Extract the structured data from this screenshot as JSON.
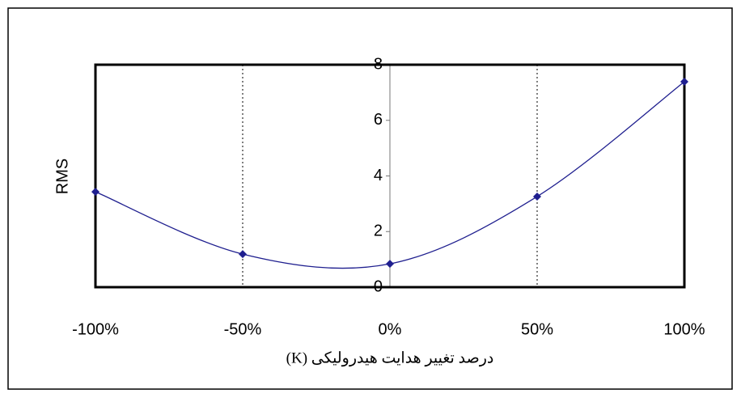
{
  "chart_data": {
    "type": "line",
    "y_label": "RMS",
    "x_label": "درصد تغییر هدایت هیدرولیکی (K)",
    "x": [
      -100,
      -50,
      0,
      50,
      100
    ],
    "series": [
      {
        "name": "RMS",
        "color": "#1f1f8f",
        "values": [
          3.43,
          1.19,
          0.84,
          3.26,
          7.39
        ]
      }
    ],
    "xlim": [
      -100,
      100
    ],
    "xticks": [
      {
        "value": -100,
        "label": "-100%"
      },
      {
        "value": -50,
        "label": "-50%"
      },
      {
        "value": 0,
        "label": "0%"
      },
      {
        "value": 50,
        "label": "50%"
      },
      {
        "value": 100,
        "label": "100%"
      }
    ],
    "ylim": [
      0,
      8
    ],
    "yticks": [
      0,
      2,
      4,
      6,
      8
    ],
    "grid": true
  }
}
